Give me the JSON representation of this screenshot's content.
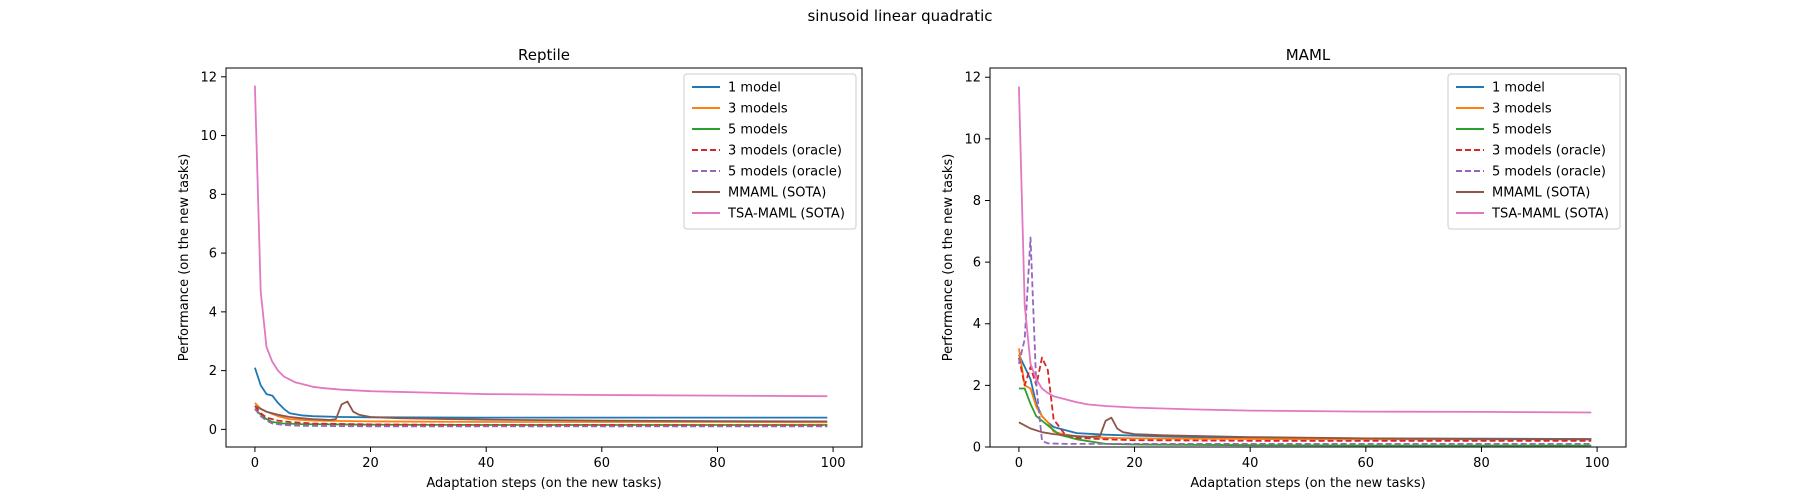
{
  "figure": {
    "suptitle": "sinusoid linear quadratic"
  },
  "colors": {
    "1 model": "#1f77b4",
    "3 models": "#ff7f0e",
    "5 models": "#2ca02c",
    "3 models (oracle)": "#d62728",
    "5 models (oracle)": "#9467bd",
    "MMAML (SOTA)": "#8c564b",
    "TSA-MAML (SOTA)": "#e377c2"
  },
  "chart_data": [
    {
      "type": "line",
      "title": "Reptile",
      "xlabel": "Adaptation steps (on the new tasks)",
      "ylabel": "Performance (on the new tasks)",
      "xlim": [
        -5,
        105
      ],
      "ylim": [
        -0.6,
        12.3
      ],
      "xticks": [
        0,
        20,
        40,
        60,
        80,
        100
      ],
      "yticks": [
        0,
        2,
        4,
        6,
        8,
        10,
        12
      ],
      "legend": "top-right",
      "series": [
        {
          "name": "1 model",
          "dash": false,
          "points": [
            [
              0,
              2.1
            ],
            [
              1,
              1.5
            ],
            [
              2,
              1.2
            ],
            [
              3,
              1.15
            ],
            [
              4,
              0.9
            ],
            [
              5,
              0.7
            ],
            [
              6,
              0.55
            ],
            [
              8,
              0.48
            ],
            [
              10,
              0.45
            ],
            [
              15,
              0.42
            ],
            [
              20,
              0.41
            ],
            [
              40,
              0.4
            ],
            [
              60,
              0.4
            ],
            [
              80,
              0.4
            ],
            [
              99,
              0.4
            ]
          ]
        },
        {
          "name": "3 models",
          "dash": false,
          "points": [
            [
              0,
              0.9
            ],
            [
              1,
              0.7
            ],
            [
              2,
              0.6
            ],
            [
              4,
              0.45
            ],
            [
              6,
              0.35
            ],
            [
              10,
              0.3
            ],
            [
              20,
              0.27
            ],
            [
              40,
              0.25
            ],
            [
              60,
              0.25
            ],
            [
              80,
              0.25
            ],
            [
              99,
              0.24
            ]
          ]
        },
        {
          "name": "5 models",
          "dash": false,
          "points": [
            [
              0,
              0.7
            ],
            [
              1,
              0.5
            ],
            [
              2,
              0.35
            ],
            [
              3,
              0.25
            ],
            [
              5,
              0.2
            ],
            [
              8,
              0.18
            ],
            [
              20,
              0.16
            ],
            [
              40,
              0.15
            ],
            [
              60,
              0.15
            ],
            [
              80,
              0.15
            ],
            [
              99,
              0.15
            ]
          ]
        },
        {
          "name": "3 models (oracle)",
          "dash": true,
          "points": [
            [
              0,
              0.8
            ],
            [
              1,
              0.55
            ],
            [
              2,
              0.4
            ],
            [
              4,
              0.3
            ],
            [
              6,
              0.25
            ],
            [
              10,
              0.2
            ],
            [
              20,
              0.17
            ],
            [
              40,
              0.15
            ],
            [
              60,
              0.15
            ],
            [
              80,
              0.14
            ],
            [
              99,
              0.14
            ]
          ]
        },
        {
          "name": "5 models (oracle)",
          "dash": true,
          "points": [
            [
              0,
              0.7
            ],
            [
              1,
              0.45
            ],
            [
              2,
              0.3
            ],
            [
              3,
              0.2
            ],
            [
              5,
              0.15
            ],
            [
              8,
              0.12
            ],
            [
              20,
              0.1
            ],
            [
              40,
              0.1
            ],
            [
              60,
              0.1
            ],
            [
              80,
              0.1
            ],
            [
              99,
              0.1
            ]
          ]
        },
        {
          "name": "MMAML (SOTA)",
          "dash": false,
          "points": [
            [
              0,
              0.8
            ],
            [
              2,
              0.6
            ],
            [
              4,
              0.5
            ],
            [
              6,
              0.42
            ],
            [
              8,
              0.38
            ],
            [
              10,
              0.35
            ],
            [
              12,
              0.33
            ],
            [
              13,
              0.32
            ],
            [
              14,
              0.35
            ],
            [
              15,
              0.85
            ],
            [
              16,
              0.95
            ],
            [
              17,
              0.6
            ],
            [
              18,
              0.5
            ],
            [
              20,
              0.42
            ],
            [
              25,
              0.38
            ],
            [
              40,
              0.33
            ],
            [
              60,
              0.3
            ],
            [
              80,
              0.28
            ],
            [
              99,
              0.27
            ]
          ]
        },
        {
          "name": "TSA-MAML (SOTA)",
          "dash": false,
          "points": [
            [
              0,
              11.7
            ],
            [
              1,
              4.7
            ],
            [
              2,
              2.8
            ],
            [
              3,
              2.3
            ],
            [
              4,
              2.0
            ],
            [
              5,
              1.8
            ],
            [
              6,
              1.7
            ],
            [
              7,
              1.6
            ],
            [
              8,
              1.55
            ],
            [
              10,
              1.45
            ],
            [
              12,
              1.4
            ],
            [
              15,
              1.35
            ],
            [
              20,
              1.3
            ],
            [
              30,
              1.25
            ],
            [
              40,
              1.2
            ],
            [
              60,
              1.17
            ],
            [
              80,
              1.15
            ],
            [
              99,
              1.13
            ]
          ]
        }
      ]
    },
    {
      "type": "line",
      "title": "MAML",
      "xlabel": "Adaptation steps (on the new tasks)",
      "ylabel": "Performance (on the new tasks)",
      "xlim": [
        -5,
        105
      ],
      "ylim": [
        0,
        12.3
      ],
      "xticks": [
        0,
        20,
        40,
        60,
        80,
        100
      ],
      "yticks": [
        0,
        2,
        4,
        6,
        8,
        10,
        12
      ],
      "legend": "top-right",
      "series": [
        {
          "name": "1 model",
          "dash": false,
          "points": [
            [
              0,
              3.0
            ],
            [
              1,
              2.6
            ],
            [
              2,
              2.2
            ],
            [
              3,
              1.4
            ],
            [
              4,
              1.0
            ],
            [
              5,
              0.8
            ],
            [
              6,
              0.65
            ],
            [
              8,
              0.55
            ],
            [
              10,
              0.45
            ],
            [
              15,
              0.4
            ],
            [
              20,
              0.37
            ],
            [
              30,
              0.32
            ],
            [
              40,
              0.3
            ],
            [
              60,
              0.28
            ],
            [
              80,
              0.27
            ],
            [
              99,
              0.26
            ]
          ]
        },
        {
          "name": "3 models",
          "dash": false,
          "points": [
            [
              0,
              3.2
            ],
            [
              1,
              2.0
            ],
            [
              2,
              1.9
            ],
            [
              3,
              1.3
            ],
            [
              4,
              1.0
            ],
            [
              5,
              0.8
            ],
            [
              6,
              0.5
            ],
            [
              8,
              0.4
            ],
            [
              10,
              0.35
            ],
            [
              15,
              0.3
            ],
            [
              20,
              0.28
            ],
            [
              40,
              0.26
            ],
            [
              60,
              0.25
            ],
            [
              80,
              0.25
            ],
            [
              99,
              0.25
            ]
          ]
        },
        {
          "name": "5 models",
          "dash": false,
          "points": [
            [
              0,
              1.9
            ],
            [
              1,
              1.9
            ],
            [
              2,
              1.4
            ],
            [
              3,
              1.0
            ],
            [
              5,
              0.7
            ],
            [
              7,
              0.4
            ],
            [
              10,
              0.25
            ],
            [
              15,
              0.1
            ],
            [
              20,
              0.08
            ],
            [
              40,
              0.06
            ],
            [
              60,
              0.05
            ],
            [
              80,
              0.05
            ],
            [
              99,
              0.05
            ]
          ]
        },
        {
          "name": "3 models (oracle)",
          "dash": true,
          "points": [
            [
              0,
              2.9
            ],
            [
              1,
              2.0
            ],
            [
              2,
              2.6
            ],
            [
              3,
              2.0
            ],
            [
              4,
              2.9
            ],
            [
              5,
              2.5
            ],
            [
              6,
              0.9
            ],
            [
              8,
              0.4
            ],
            [
              10,
              0.3
            ],
            [
              15,
              0.25
            ],
            [
              20,
              0.22
            ],
            [
              40,
              0.2
            ],
            [
              60,
              0.2
            ],
            [
              80,
              0.2
            ],
            [
              99,
              0.2
            ]
          ]
        },
        {
          "name": "5 models (oracle)",
          "dash": true,
          "points": [
            [
              0,
              2.7
            ],
            [
              1,
              3.5
            ],
            [
              2,
              6.8
            ],
            [
              3,
              2.0
            ],
            [
              4,
              0.2
            ],
            [
              5,
              0.12
            ],
            [
              8,
              0.1
            ],
            [
              20,
              0.1
            ],
            [
              40,
              0.1
            ],
            [
              60,
              0.1
            ],
            [
              80,
              0.1
            ],
            [
              99,
              0.1
            ]
          ]
        },
        {
          "name": "MMAML (SOTA)",
          "dash": false,
          "points": [
            [
              0,
              0.8
            ],
            [
              2,
              0.6
            ],
            [
              4,
              0.48
            ],
            [
              6,
              0.42
            ],
            [
              8,
              0.38
            ],
            [
              10,
              0.35
            ],
            [
              12,
              0.33
            ],
            [
              14,
              0.35
            ],
            [
              15,
              0.85
            ],
            [
              16,
              0.95
            ],
            [
              17,
              0.6
            ],
            [
              18,
              0.48
            ],
            [
              20,
              0.42
            ],
            [
              25,
              0.38
            ],
            [
              40,
              0.32
            ],
            [
              60,
              0.28
            ],
            [
              80,
              0.26
            ],
            [
              99,
              0.25
            ]
          ]
        },
        {
          "name": "TSA-MAML (SOTA)",
          "dash": false,
          "points": [
            [
              0,
              11.7
            ],
            [
              1,
              4.6
            ],
            [
              2,
              2.7
            ],
            [
              3,
              2.2
            ],
            [
              4,
              1.9
            ],
            [
              5,
              1.75
            ],
            [
              6,
              1.65
            ],
            [
              8,
              1.55
            ],
            [
              10,
              1.45
            ],
            [
              12,
              1.38
            ],
            [
              15,
              1.33
            ],
            [
              20,
              1.28
            ],
            [
              30,
              1.22
            ],
            [
              40,
              1.18
            ],
            [
              60,
              1.15
            ],
            [
              80,
              1.14
            ],
            [
              99,
              1.12
            ]
          ]
        }
      ]
    }
  ]
}
